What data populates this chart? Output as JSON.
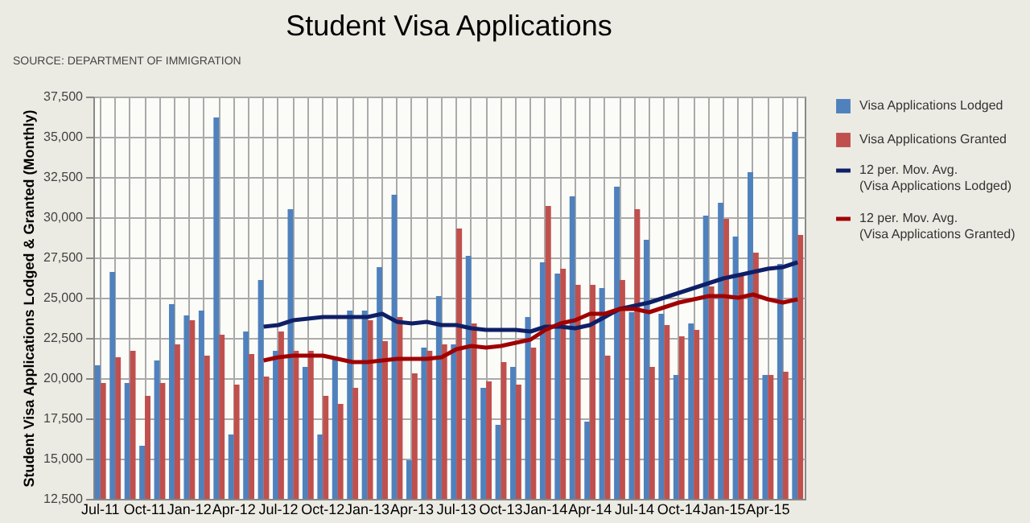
{
  "chart_data": {
    "type": "bar",
    "title": "Student Visa Applications",
    "ylabel": "Student Visa Applications Lodged & Granted (Monthly)",
    "annotations": [
      "SOURCE: DEPARTMENT OF IMMIGRATION"
    ],
    "categories": [
      "Jul-11",
      null,
      null,
      "Oct-11",
      null,
      null,
      "Jan-12",
      null,
      null,
      "Apr-12",
      null,
      null,
      "Jul-12",
      null,
      null,
      "Oct-12",
      null,
      null,
      "Jan-13",
      null,
      null,
      "Apr-13",
      null,
      null,
      "Jul-13",
      null,
      null,
      "Oct-13",
      null,
      null,
      "Jan-14",
      null,
      null,
      "Apr-14",
      null,
      null,
      "Jul-14",
      null,
      null,
      "Oct-14",
      null,
      null,
      "Jan-15",
      null,
      null,
      "Apr-15",
      null,
      null
    ],
    "series": [
      {
        "name": "Visa Applications Lodged",
        "color": "#4f81bd",
        "values": [
          20800,
          26600,
          19700,
          15800,
          21100,
          24600,
          23900,
          24200,
          36200,
          16500,
          22900,
          26100,
          21700,
          30500,
          20700,
          16500,
          21200,
          24200,
          24200,
          26900,
          31400,
          14900,
          21900,
          25100,
          22100,
          27600,
          19400,
          17100,
          20700,
          23800,
          27200,
          26500,
          31300,
          17300,
          25600,
          31900,
          24100,
          28600,
          24000,
          20200,
          23400,
          30100,
          30900,
          28800,
          32800,
          20200,
          27100,
          35300
        ]
      },
      {
        "name": "Visa Applications Granted",
        "color": "#c0504d",
        "values": [
          19700,
          21300,
          21700,
          18900,
          19700,
          22100,
          23600,
          21400,
          22700,
          19600,
          21500,
          20100,
          22900,
          21700,
          21700,
          18900,
          18400,
          19400,
          23600,
          22300,
          23800,
          20300,
          21700,
          22100,
          29300,
          23400,
          19800,
          21000,
          19600,
          21900,
          30700,
          26800,
          25800,
          25800,
          21400,
          26100,
          30500,
          20700,
          23300,
          22600,
          23000,
          25700,
          29900,
          26400,
          27800,
          20200,
          20400,
          28900
        ]
      },
      {
        "name": "12 per. Mov. Avg. (Visa Applications Lodged)",
        "type": "line",
        "color": "#0f1f66",
        "values": [
          null,
          null,
          null,
          null,
          null,
          null,
          null,
          null,
          null,
          null,
          null,
          23200,
          23300,
          23600,
          23700,
          23800,
          23800,
          23800,
          23800,
          24000,
          23500,
          23400,
          23500,
          23300,
          23300,
          23100,
          23000,
          23000,
          23000,
          22900,
          23200,
          23200,
          23100,
          23300,
          23800,
          24300,
          24500,
          24700,
          25000,
          25300,
          25600,
          25900,
          26200,
          26400,
          26600,
          26800,
          26900,
          27200
        ]
      },
      {
        "name": "12 per. Mov. Avg. (Visa Applications Granted)",
        "type": "line",
        "color": "#a00000",
        "values": [
          null,
          null,
          null,
          null,
          null,
          null,
          null,
          null,
          null,
          null,
          null,
          21100,
          21300,
          21400,
          21400,
          21400,
          21200,
          21000,
          21000,
          21100,
          21200,
          21200,
          21200,
          21300,
          21800,
          22000,
          21900,
          22000,
          22200,
          22400,
          23000,
          23400,
          23600,
          24000,
          24000,
          24300,
          24300,
          24100,
          24400,
          24700,
          24900,
          25100,
          25100,
          25000,
          25200,
          24900,
          24700,
          24900
        ]
      }
    ],
    "ylim": [
      12500,
      37500
    ],
    "yticks": [
      {
        "value": 12500,
        "label": "12,500"
      },
      {
        "value": 15000,
        "label": "15,000"
      },
      {
        "value": 17500,
        "label": "17,500"
      },
      {
        "value": 20000,
        "label": "20,000"
      },
      {
        "value": 22500,
        "label": "22,500"
      },
      {
        "value": 25000,
        "label": "25,000"
      },
      {
        "value": 27500,
        "label": "27,500"
      },
      {
        "value": 30000,
        "label": "30,000"
      },
      {
        "value": 32500,
        "label": "32,500"
      },
      {
        "value": 35000,
        "label": "35,000"
      },
      {
        "value": 37500,
        "label": "37,500"
      }
    ],
    "grid": true,
    "legend": "right"
  }
}
